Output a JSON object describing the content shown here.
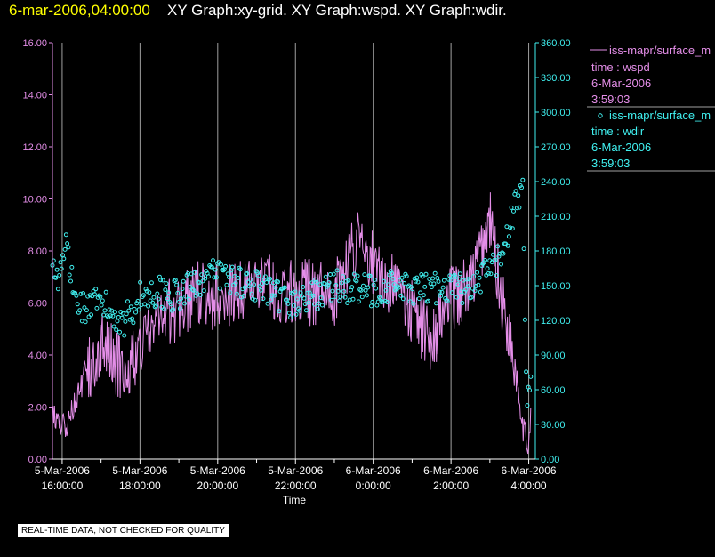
{
  "header": {
    "date_label": "6-mar-2006,04:00:00",
    "graph_titles": "XY Graph:xy-grid.  XY Graph:wspd.  XY Graph:wdir."
  },
  "footer": {
    "quality_note": "REAL-TIME DATA, NOT CHECKED FOR QUALITY"
  },
  "colors": {
    "background": "#000000",
    "wspd": "#e48ee8",
    "wdir": "#40f0f0",
    "grid": "#a0a0a0",
    "date": "#ffff00"
  },
  "chart_data": {
    "type": "line",
    "xlabel": "Time",
    "x_range_hours": [
      15.75,
      4.17
    ],
    "x_ticks": [
      {
        "hour": 16,
        "line1": "5-Mar-2006",
        "line2": "16:00:00"
      },
      {
        "hour": 18,
        "line1": "5-Mar-2006",
        "line2": "18:00:00"
      },
      {
        "hour": 20,
        "line1": "5-Mar-2006",
        "line2": "20:00:00"
      },
      {
        "hour": 22,
        "line1": "5-Mar-2006",
        "line2": "22:00:00"
      },
      {
        "hour": 24,
        "line1": "6-Mar-2006",
        "line2": "0:00:00"
      },
      {
        "hour": 26,
        "line1": "6-Mar-2006",
        "line2": "2:00:00"
      },
      {
        "hour": 28,
        "line1": "6-Mar-2006",
        "line2": "4:00:00"
      }
    ],
    "y_left": {
      "ylim": [
        0,
        16
      ],
      "ticks": [
        "0.00",
        "2.00",
        "4.00",
        "6.00",
        "8.00",
        "10.00",
        "12.00",
        "14.00",
        "16.00"
      ]
    },
    "y_right": {
      "ylim": [
        0,
        360
      ],
      "ticks": [
        "0.00",
        "30.00",
        "60.00",
        "90.00",
        "120.00",
        "150.00",
        "180.00",
        "210.00",
        "240.00",
        "270.00",
        "300.00",
        "330.00",
        "360.00"
      ]
    },
    "series": [
      {
        "name": "iss-mapr/surface_m",
        "variable": "time : wspd",
        "date": "6-Mar-2006",
        "time": "3:59:03",
        "style": "line",
        "axis": "left",
        "profile_hours": [
          15.75,
          16.1,
          16.5,
          17.0,
          17.5,
          18.0,
          18.5,
          19.0,
          19.5,
          20.0,
          21.0,
          22.0,
          23.0,
          23.6,
          24.0,
          24.5,
          25.0,
          25.5,
          26.0,
          26.5,
          27.0,
          27.3,
          27.5,
          27.7,
          27.85,
          28.0,
          28.05
        ],
        "profile_values": [
          1.8,
          1.2,
          2.8,
          4.6,
          3.4,
          4.2,
          5.6,
          5.8,
          6.4,
          6.2,
          6.7,
          6.4,
          6.4,
          8.4,
          7.6,
          6.6,
          5.6,
          4.6,
          6.2,
          6.6,
          9.2,
          6.2,
          4.8,
          3.2,
          1.2,
          0.5,
          2.0
        ]
      },
      {
        "name": "iss-mapr/surface_m",
        "variable": "time : wdir",
        "date": "6-Mar-2006",
        "time": "3:59:03",
        "style": "scatter",
        "axis": "right",
        "profile_hours": [
          15.75,
          15.9,
          16.1,
          16.3,
          16.6,
          17.0,
          17.3,
          17.6,
          18.0,
          18.5,
          19.0,
          19.5,
          20.0,
          20.5,
          21.0,
          21.5,
          22.0,
          23.0,
          24.0,
          24.5,
          25.0,
          25.5,
          26.0,
          26.5,
          26.8,
          27.0,
          27.2,
          27.5,
          27.7,
          27.85,
          27.95,
          28.05
        ],
        "profile_values": [
          165,
          150,
          190,
          140,
          130,
          135,
          125,
          120,
          140,
          145,
          140,
          155,
          160,
          155,
          150,
          140,
          135,
          150,
          145,
          150,
          145,
          148,
          150,
          145,
          155,
          165,
          170,
          200,
          225,
          230,
          50,
          60
        ]
      }
    ]
  }
}
